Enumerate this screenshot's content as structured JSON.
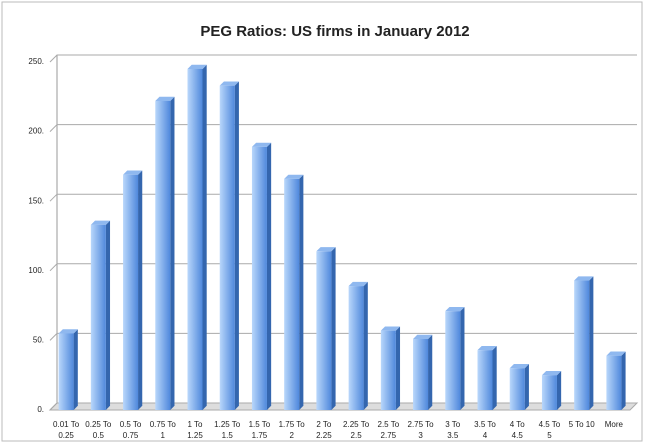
{
  "chart_data": {
    "type": "bar3d",
    "title": "PEG Ratios: US firms in January 2012",
    "categories": [
      "0.01 To 0.25",
      "0.25 To 0.5",
      "0.5 To 0.75",
      "0.75 To 1",
      "1 To 1.25",
      "1.25 To 1.5",
      "1.5 To 1.75",
      "1.75 To 2",
      "2 To 2.25",
      "2.25 To 2.5",
      "2.5 To 2.75",
      "2.75 To 3",
      "3 To 3.5",
      "3.5 To 4",
      "4 To 4.5",
      "4.5 To 5",
      "5 To 10",
      "More"
    ],
    "values": [
      55,
      133,
      169,
      222,
      245,
      233,
      189,
      166,
      114,
      89,
      57,
      51,
      71,
      43,
      30,
      25,
      93,
      39
    ],
    "color": "#5b95e0",
    "ylim": [
      0,
      250
    ],
    "yticks": [
      {
        "value": 0,
        "label": "0."
      },
      {
        "value": 50,
        "label": "50."
      },
      {
        "value": 100,
        "label": "100."
      },
      {
        "value": 150,
        "label": "150."
      },
      {
        "value": 200,
        "label": "200."
      },
      {
        "value": 250,
        "label": "250."
      }
    ],
    "grid": true
  }
}
